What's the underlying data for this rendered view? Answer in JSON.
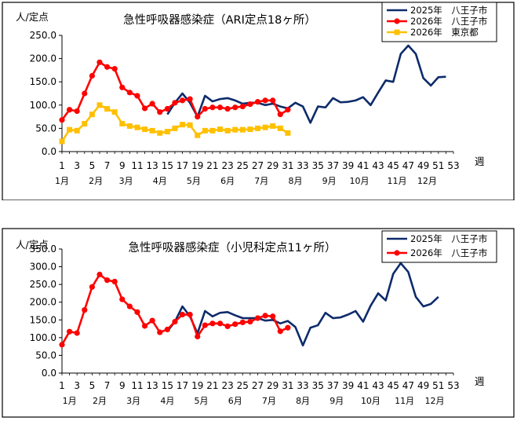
{
  "chart_data": [
    {
      "type": "line",
      "title": "急性呼吸器感染症（ARI定点18ヶ所）",
      "ylabel": "人/定点",
      "xlabel": "週",
      "ylim": [
        0,
        250
      ],
      "yticks": [
        "0.0",
        "50.0",
        "100.0",
        "150.0",
        "200.0",
        "250.0"
      ],
      "ytick_values": [
        0,
        50,
        100,
        150,
        200,
        250
      ],
      "xticks": [
        1,
        3,
        5,
        7,
        9,
        11,
        13,
        15,
        17,
        19,
        21,
        23,
        25,
        27,
        29,
        31,
        33,
        35,
        37,
        39,
        41,
        43,
        45,
        47,
        49,
        51,
        53
      ],
      "month_labels": [
        {
          "text": "1月",
          "week": 1
        },
        {
          "text": "2月",
          "week": 5.5
        },
        {
          "text": "3月",
          "week": 9.5
        },
        {
          "text": "4月",
          "week": 14
        },
        {
          "text": "5月",
          "week": 18.5
        },
        {
          "text": "6月",
          "week": 23
        },
        {
          "text": "7月",
          "week": 27.5
        },
        {
          "text": "8月",
          "week": 32
        },
        {
          "text": "9月",
          "week": 36.5
        },
        {
          "text": "10月",
          "week": 40.5
        },
        {
          "text": "11月",
          "week": 45.5
        },
        {
          "text": "12月",
          "week": 49.5
        }
      ],
      "legend_position": "top-right",
      "grid": false,
      "series": [
        {
          "name": "2025年　八王子市",
          "color": "#0d2b6b",
          "marker": "none",
          "start_week": 15,
          "values": [
            80,
            105,
            125,
            105,
            75,
            120,
            108,
            113,
            115,
            110,
            103,
            105,
            105,
            100,
            103,
            97,
            93,
            105,
            97,
            62,
            97,
            95,
            115,
            106,
            107,
            110,
            117,
            100,
            127,
            153,
            150,
            210,
            228,
            210,
            158,
            142,
            160,
            161
          ]
        },
        {
          "name": "2026年　八王子市",
          "color": "#ff0000",
          "marker": "circle",
          "start_week": 1,
          "values": [
            68,
            90,
            87,
            125,
            163,
            192,
            182,
            178,
            138,
            127,
            120,
            93,
            103,
            85,
            92,
            105,
            110,
            113,
            75,
            92,
            95,
            95,
            92,
            95,
            97,
            102,
            107,
            110,
            110,
            80,
            90
          ]
        },
        {
          "name": "2026年　東京都",
          "color": "#ffc000",
          "marker": "square",
          "start_week": 1,
          "values": [
            22,
            47,
            45,
            60,
            80,
            100,
            92,
            85,
            60,
            55,
            52,
            48,
            45,
            40,
            43,
            50,
            58,
            57,
            35,
            45,
            45,
            48,
            45,
            47,
            47,
            48,
            50,
            52,
            55,
            50,
            40
          ]
        }
      ]
    },
    {
      "type": "line",
      "title": "急性呼吸器感染症（小児科定点11ヶ所）",
      "ylabel": "人/定点",
      "xlabel": "週",
      "ylim": [
        0,
        350
      ],
      "yticks": [
        "0.0",
        "50.0",
        "100.0",
        "150.0",
        "200.0",
        "250.0",
        "300.0",
        "350.0"
      ],
      "ytick_values": [
        0,
        50,
        100,
        150,
        200,
        250,
        300,
        350
      ],
      "xticks": [
        1,
        3,
        5,
        7,
        9,
        11,
        13,
        15,
        17,
        19,
        21,
        23,
        25,
        27,
        29,
        31,
        33,
        35,
        37,
        39,
        41,
        43,
        45,
        47,
        49,
        51,
        53
      ],
      "month_labels": [
        {
          "text": "1月",
          "week": 2
        },
        {
          "text": "2月",
          "week": 6
        },
        {
          "text": "3月",
          "week": 10.5
        },
        {
          "text": "4月",
          "week": 15
        },
        {
          "text": "5月",
          "week": 19.5
        },
        {
          "text": "6月",
          "week": 24
        },
        {
          "text": "7月",
          "week": 28.5
        },
        {
          "text": "8月",
          "week": 33
        },
        {
          "text": "9月",
          "week": 37.5
        },
        {
          "text": "10月",
          "week": 42
        },
        {
          "text": "11月",
          "week": 46.5
        },
        {
          "text": "12月",
          "week": 50.5
        }
      ],
      "legend_position": "top-right",
      "grid": false,
      "series": [
        {
          "name": "2025年　八王子市",
          "color": "#0d2b6b",
          "marker": "none",
          "start_week": 15,
          "values": [
            118,
            145,
            188,
            160,
            112,
            175,
            160,
            170,
            172,
            163,
            155,
            155,
            155,
            148,
            150,
            140,
            147,
            130,
            78,
            128,
            135,
            170,
            155,
            157,
            165,
            175,
            145,
            190,
            225,
            205,
            280,
            310,
            285,
            215,
            188,
            195,
            215
          ]
        },
        {
          "name": "2026年　八王子市",
          "color": "#ff0000",
          "marker": "circle",
          "start_week": 1,
          "values": [
            80,
            117,
            113,
            178,
            243,
            278,
            262,
            258,
            208,
            188,
            172,
            133,
            148,
            115,
            123,
            145,
            165,
            165,
            103,
            135,
            140,
            140,
            132,
            138,
            143,
            145,
            155,
            162,
            160,
            118,
            128
          ]
        }
      ]
    }
  ]
}
